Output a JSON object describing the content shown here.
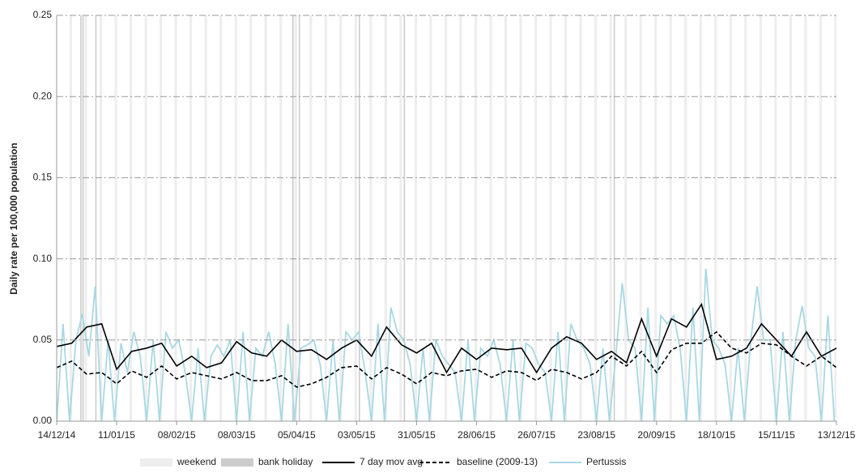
{
  "chart_data": {
    "type": "line",
    "y_label": "Daily rate per 100,000 population",
    "xlim": [
      0,
      364
    ],
    "ylim": [
      0,
      0.25
    ],
    "xticks": [
      {
        "value": 0,
        "label": "14/12/14"
      },
      {
        "value": 28,
        "label": "11/01/15"
      },
      {
        "value": 56,
        "label": "08/02/15"
      },
      {
        "value": 84,
        "label": "08/03/15"
      },
      {
        "value": 112,
        "label": "05/04/15"
      },
      {
        "value": 140,
        "label": "03/05/15"
      },
      {
        "value": 168,
        "label": "31/05/15"
      },
      {
        "value": 196,
        "label": "28/06/15"
      },
      {
        "value": 224,
        "label": "26/07/15"
      },
      {
        "value": 252,
        "label": "23/08/15"
      },
      {
        "value": 280,
        "label": "20/09/15"
      },
      {
        "value": 308,
        "label": "18/10/15"
      },
      {
        "value": 336,
        "label": "15/11/15"
      },
      {
        "value": 364,
        "label": "13/12/15"
      }
    ],
    "yticks": [
      {
        "value": 0,
        "label": "0.00"
      },
      {
        "value": 0.05,
        "label": "0.05"
      },
      {
        "value": 0.1,
        "label": "0.10"
      },
      {
        "value": 0.15,
        "label": "0.15"
      },
      {
        "value": 0.2,
        "label": "0.20"
      },
      {
        "value": 0.25,
        "label": "0.25"
      }
    ],
    "grid": true,
    "shading": [
      {
        "name": "weekend",
        "color": "#eeeeee",
        "x": [
          6,
          13,
          20,
          27,
          34,
          41,
          48,
          55,
          62,
          69,
          76,
          83,
          90,
          97,
          104,
          111,
          118,
          125,
          132,
          139,
          146,
          153,
          160,
          167,
          174,
          181,
          188,
          195,
          202,
          209,
          216,
          223,
          230,
          237,
          244,
          251,
          258,
          265,
          272,
          279,
          286,
          293,
          300,
          307,
          314,
          321,
          328,
          335,
          342,
          349,
          356,
          363
        ]
      },
      {
        "name": "bank holiday",
        "color": "#cccccc",
        "x": [
          11,
          12,
          18,
          110,
          113,
          141,
          162,
          260
        ]
      }
    ],
    "series": [
      {
        "name": "7 day mov avg",
        "color": "#000000",
        "dash": false,
        "x": [
          0,
          7,
          14,
          21,
          28,
          35,
          42,
          49,
          56,
          63,
          70,
          77,
          84,
          91,
          98,
          105,
          112,
          119,
          126,
          133,
          140,
          147,
          154,
          161,
          168,
          175,
          182,
          189,
          196,
          203,
          210,
          217,
          224,
          231,
          238,
          245,
          252,
          259,
          266,
          273,
          280,
          287,
          294,
          301,
          308,
          315,
          322,
          329,
          336,
          343,
          350,
          357,
          364
        ],
        "values": [
          0.046,
          0.048,
          0.058,
          0.06,
          0.032,
          0.043,
          0.045,
          0.048,
          0.034,
          0.04,
          0.033,
          0.036,
          0.049,
          0.042,
          0.04,
          0.05,
          0.043,
          0.044,
          0.038,
          0.045,
          0.05,
          0.04,
          0.058,
          0.047,
          0.042,
          0.048,
          0.03,
          0.045,
          0.038,
          0.045,
          0.044,
          0.045,
          0.03,
          0.045,
          0.052,
          0.048,
          0.038,
          0.043,
          0.036,
          0.063,
          0.04,
          0.063,
          0.058,
          0.072,
          0.038,
          0.04,
          0.045,
          0.06,
          0.05,
          0.04,
          0.055,
          0.04,
          0.045
        ]
      },
      {
        "name": "baseline (2009-13)",
        "color": "#000000",
        "dash": true,
        "x": [
          0,
          7,
          14,
          21,
          28,
          35,
          42,
          49,
          56,
          63,
          70,
          77,
          84,
          91,
          98,
          105,
          112,
          119,
          126,
          133,
          140,
          147,
          154,
          161,
          168,
          175,
          182,
          189,
          196,
          203,
          210,
          217,
          224,
          231,
          238,
          245,
          252,
          259,
          266,
          273,
          280,
          287,
          294,
          301,
          308,
          315,
          322,
          329,
          336,
          343,
          350,
          357,
          364
        ],
        "values": [
          0.033,
          0.037,
          0.029,
          0.03,
          0.023,
          0.031,
          0.027,
          0.034,
          0.026,
          0.03,
          0.028,
          0.026,
          0.03,
          0.025,
          0.025,
          0.028,
          0.021,
          0.023,
          0.027,
          0.033,
          0.034,
          0.026,
          0.033,
          0.029,
          0.023,
          0.03,
          0.028,
          0.031,
          0.032,
          0.027,
          0.031,
          0.03,
          0.025,
          0.032,
          0.03,
          0.026,
          0.03,
          0.04,
          0.034,
          0.043,
          0.03,
          0.044,
          0.048,
          0.048,
          0.055,
          0.045,
          0.042,
          0.048,
          0.047,
          0.04,
          0.034,
          0.04,
          0.033
        ]
      },
      {
        "name": "Pertussis",
        "color": "#a8d8e3",
        "dash": false,
        "x": [
          0,
          3,
          6,
          9,
          12,
          15,
          18,
          21,
          24,
          27,
          30,
          33,
          36,
          39,
          42,
          45,
          48,
          51,
          54,
          57,
          60,
          63,
          66,
          69,
          72,
          75,
          78,
          81,
          84,
          87,
          90,
          93,
          96,
          99,
          102,
          105,
          108,
          111,
          114,
          117,
          120,
          123,
          126,
          129,
          132,
          135,
          138,
          141,
          144,
          147,
          150,
          153,
          156,
          159,
          162,
          165,
          168,
          171,
          174,
          177,
          180,
          183,
          186,
          189,
          192,
          195,
          198,
          201,
          204,
          207,
          210,
          213,
          216,
          219,
          222,
          225,
          228,
          231,
          234,
          237,
          240,
          243,
          246,
          249,
          252,
          255,
          258,
          261,
          264,
          267,
          270,
          273,
          276,
          279,
          282,
          285,
          288,
          291,
          294,
          297,
          300,
          303,
          306,
          309,
          312,
          315,
          318,
          321,
          324,
          327,
          330,
          333,
          336,
          339,
          342,
          345,
          348,
          351,
          354,
          357,
          360,
          363
        ],
        "values": [
          0,
          0.06,
          0,
          0.05,
          0.066,
          0.04,
          0.083,
          0,
          0.05,
          0,
          0.048,
          0.03,
          0.055,
          0.04,
          0,
          0.05,
          0,
          0.055,
          0.045,
          0.05,
          0.03,
          0,
          0.045,
          0,
          0.04,
          0.047,
          0.04,
          0.05,
          0,
          0.055,
          0,
          0.045,
          0.04,
          0.055,
          0.035,
          0,
          0.06,
          0,
          0.045,
          0.047,
          0.05,
          0.035,
          0,
          0.05,
          0,
          0.055,
          0.05,
          0.055,
          0.03,
          0,
          0.06,
          0,
          0.07,
          0.055,
          0.05,
          0.035,
          0,
          0.045,
          0,
          0.05,
          0.04,
          0.035,
          0.03,
          0,
          0.05,
          0,
          0.045,
          0.04,
          0.05,
          0.035,
          0,
          0.05,
          0,
          0.048,
          0.045,
          0.035,
          0.03,
          0,
          0.055,
          0,
          0.06,
          0.05,
          0.045,
          0.035,
          0,
          0.045,
          0,
          0.04,
          0.085,
          0.05,
          0.045,
          0,
          0.07,
          0,
          0.065,
          0.06,
          0.065,
          0.045,
          0,
          0.07,
          0,
          0.094,
          0.05,
          0.045,
          0.035,
          0,
          0.045,
          0,
          0.05,
          0.083,
          0.05,
          0.05,
          0,
          0.055,
          0,
          0.05,
          0.071,
          0.045,
          0.04,
          0,
          0.065,
          0
        ]
      }
    ]
  }
}
